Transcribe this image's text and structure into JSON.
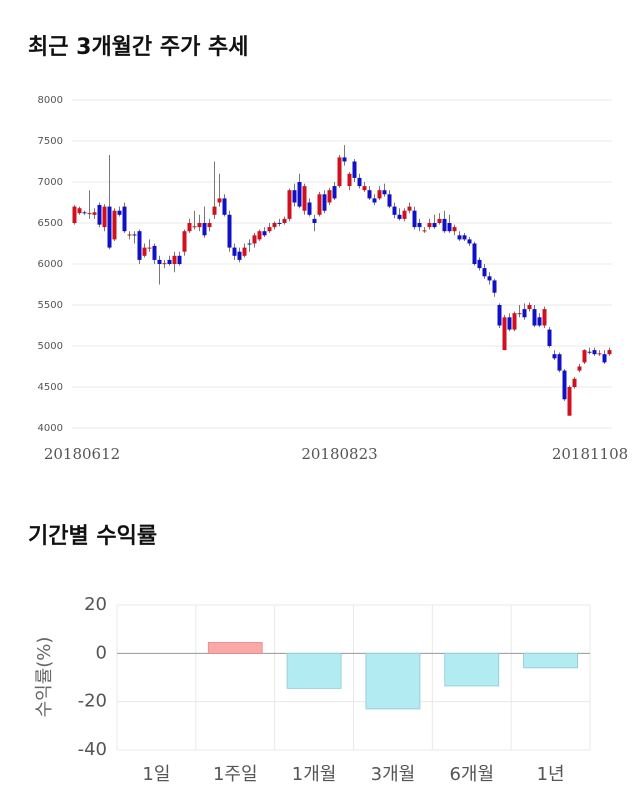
{
  "chart_data": [
    {
      "type": "candlestick",
      "title": "최근 3개월간 주가 추세",
      "categories": [
        "20180612",
        null,
        null,
        null,
        null,
        null,
        null,
        null,
        null,
        null,
        null,
        null,
        null,
        null,
        null,
        null,
        null,
        null,
        null,
        null,
        null,
        null,
        null,
        null,
        null,
        null,
        null,
        null,
        null,
        null,
        null,
        null,
        null,
        null,
        null,
        null,
        null,
        null,
        null,
        null,
        null,
        null,
        null,
        null,
        null,
        null,
        null,
        null,
        null,
        null,
        null,
        null,
        null,
        "20180823",
        null,
        null,
        null,
        null,
        null,
        null,
        null,
        null,
        null,
        null,
        null,
        null,
        null,
        null,
        null,
        null,
        null,
        null,
        null,
        null,
        null,
        null,
        null,
        null,
        null,
        null,
        null,
        null,
        null,
        null,
        null,
        null,
        null,
        null,
        null,
        null,
        null,
        null,
        null,
        null,
        null,
        null,
        null,
        null,
        null,
        null,
        null,
        null,
        null,
        null,
        null,
        null,
        null,
        "20181108"
      ],
      "open": [
        6500,
        6620,
        6630,
        6620,
        6600,
        6720,
        6450,
        6700,
        6300,
        6650,
        6700,
        6350,
        6360,
        6400,
        6100,
        6200,
        6220,
        6050,
        6000,
        6050,
        6000,
        6100,
        6150,
        6400,
        6450,
        6450,
        6500,
        6450,
        6600,
        6750,
        6800,
        6600,
        6200,
        6150,
        6100,
        6250,
        6250,
        6300,
        6400,
        6400,
        6450,
        6500,
        6500,
        6550,
        6900,
        7000,
        6650,
        6750,
        6550,
        6600,
        6850,
        6750,
        6950,
        6950,
        7300,
        6950,
        7250,
        7050,
        6900,
        6900,
        6800,
        6800,
        6900,
        6850,
        6700,
        6600,
        6550,
        6650,
        6650,
        6500,
        6400,
        6450,
        6500,
        6500,
        6550,
        6500,
        6400,
        6350,
        6350,
        6300,
        6250,
        6050,
        5950,
        5850,
        5800,
        5500,
        4950,
        5350,
        5200,
        5400,
        5450,
        5450,
        5450,
        5350,
        5250,
        5200,
        4900,
        4900,
        4700,
        4150,
        4500,
        4700,
        4800,
        4930,
        4950,
        4900,
        4900,
        4900
      ],
      "high": [
        6720,
        6700,
        6650,
        6900,
        6680,
        6750,
        6730,
        7330,
        6680,
        6700,
        6750,
        6400,
        6400,
        6420,
        6250,
        6300,
        6250,
        6100,
        6050,
        6100,
        6150,
        6150,
        6420,
        6550,
        6650,
        6600,
        6700,
        6550,
        7250,
        7100,
        6850,
        6650,
        6250,
        6200,
        6250,
        6300,
        6380,
        6420,
        6450,
        6500,
        6520,
        6550,
        6580,
        6920,
        6980,
        7100,
        6980,
        6800,
        6600,
        6880,
        6900,
        6930,
        7000,
        7330,
        7450,
        7120,
        7280,
        7100,
        7000,
        6950,
        6850,
        6950,
        6980,
        6900,
        6750,
        6680,
        6680,
        6750,
        6700,
        6550,
        6450,
        6550,
        6600,
        6620,
        6650,
        6600,
        6480,
        6400,
        6380,
        6330,
        6270,
        6080,
        6000,
        5900,
        5820,
        5520,
        5380,
        5400,
        5420,
        5500,
        5520,
        5530,
        5500,
        5400,
        5480,
        5230,
        4950,
        4920,
        4720,
        4520,
        4620,
        4780,
        4960,
        4980,
        4980,
        4950,
        4950,
        4980
      ],
      "low": [
        6480,
        6600,
        6600,
        6550,
        6550,
        6450,
        6400,
        6180,
        6280,
        6580,
        6380,
        6300,
        6250,
        6000,
        6080,
        6150,
        6000,
        5750,
        5950,
        5980,
        5900,
        5980,
        6100,
        6380,
        6420,
        6400,
        6320,
        6400,
        6550,
        6700,
        6580,
        6150,
        6050,
        6020,
        6080,
        6150,
        6200,
        6280,
        6330,
        6380,
        6420,
        6460,
        6480,
        6520,
        6700,
        6680,
        6600,
        6580,
        6400,
        6580,
        6620,
        6720,
        6780,
        6930,
        7200,
        6900,
        7000,
        6920,
        6880,
        6780,
        6720,
        6780,
        6820,
        6680,
        6560,
        6530,
        6520,
        6620,
        6420,
        6400,
        6380,
        6420,
        6430,
        6480,
        6380,
        6380,
        6350,
        6280,
        6280,
        6220,
        5980,
        5920,
        5820,
        5750,
        5600,
        5220,
        4950,
        5180,
        5180,
        5350,
        5320,
        5420,
        5230,
        5230,
        5220,
        4980,
        4830,
        4680,
        4330,
        4150,
        4480,
        4680,
        4780,
        4900,
        4880,
        4880,
        4780,
        4880
      ],
      "close": [
        6700,
        6680,
        6620,
        6620,
        6630,
        6480,
        6700,
        6200,
        6650,
        6600,
        6400,
        6360,
        6350,
        6050,
        6200,
        6200,
        6050,
        6000,
        6010,
        6000,
        6100,
        6000,
        6400,
        6500,
        6460,
        6500,
        6350,
        6500,
        6700,
        6800,
        6600,
        6200,
        6100,
        6050,
        6200,
        6240,
        6350,
        6400,
        6350,
        6450,
        6500,
        6490,
        6550,
        6900,
        6750,
        6700,
        6950,
        6600,
        6500,
        6850,
        6650,
        6900,
        6800,
        7300,
        7250,
        7100,
        7050,
        6950,
        6950,
        6800,
        6750,
        6900,
        6850,
        6700,
        6600,
        6550,
        6650,
        6700,
        6450,
        6450,
        6410,
        6500,
        6450,
        6550,
        6400,
        6400,
        6450,
        6300,
        6300,
        6250,
        6000,
        5950,
        5850,
        5800,
        5650,
        5250,
        5350,
        5200,
        5400,
        5400,
        5350,
        5500,
        5250,
        5250,
        5450,
        5000,
        4850,
        4700,
        4350,
        4500,
        4600,
        4750,
        4950,
        4920,
        4900,
        4910,
        4800,
        4950
      ],
      "up_color": "#d0101c",
      "down_color": "#1010c8",
      "ylim": [
        4000,
        8000
      ],
      "yticks": [
        4000,
        4500,
        5000,
        5500,
        6000,
        6500,
        7000,
        7500,
        8000
      ],
      "grid": true
    },
    {
      "type": "bar",
      "title": "기간별 수익률",
      "ylabel": "수익률(%)",
      "categories": [
        "1일",
        "1주일",
        "1개월",
        "3개월",
        "6개월",
        "1년"
      ],
      "values": [
        0,
        4.5,
        -14.5,
        -23,
        -13.5,
        -6
      ],
      "up_color": "#f9a8a8",
      "down_color": "#b3ebf3",
      "ylim": [
        -40,
        20
      ],
      "yticks": [
        -40,
        -20,
        0,
        20
      ],
      "grid": true
    }
  ]
}
